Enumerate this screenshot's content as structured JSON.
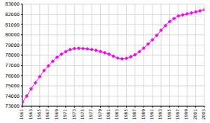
{
  "chart_data": {
    "type": "line",
    "x": [
      1961,
      1962,
      1963,
      1964,
      1965,
      1966,
      1967,
      1968,
      1969,
      1970,
      1971,
      1972,
      1973,
      1974,
      1975,
      1976,
      1977,
      1978,
      1979,
      1980,
      1981,
      1982,
      1983,
      1984,
      1985,
      1986,
      1987,
      1988,
      1989,
      1990,
      1991,
      1992,
      1993,
      1994,
      1995,
      1996,
      1997,
      1998,
      1999,
      2000,
      2001,
      2002,
      2003
    ],
    "values": [
      73400,
      74000,
      74700,
      75300,
      75900,
      76500,
      76950,
      77400,
      77800,
      78100,
      78350,
      78550,
      78650,
      78680,
      78650,
      78620,
      78560,
      78480,
      78360,
      78250,
      78100,
      77900,
      77720,
      77650,
      77700,
      77850,
      78050,
      78350,
      78700,
      79100,
      79500,
      79950,
      80450,
      80900,
      81300,
      81600,
      81850,
      81950,
      82050,
      82150,
      82250,
      82350,
      82450
    ],
    "color": "#ff00ff",
    "marker": "diamond",
    "xlim": [
      1961,
      2003
    ],
    "xticks": [
      1961,
      1963,
      1965,
      1967,
      1969,
      1971,
      1973,
      1975,
      1977,
      1979,
      1981,
      1983,
      1985,
      1987,
      1989,
      1991,
      1993,
      1995,
      1997,
      1999,
      2001,
      2003
    ],
    "ylim": [
      73000,
      83000
    ],
    "yticks": [
      73000,
      74000,
      75000,
      76000,
      77000,
      78000,
      79000,
      80000,
      81000,
      82000,
      83000
    ],
    "grid": true
  }
}
